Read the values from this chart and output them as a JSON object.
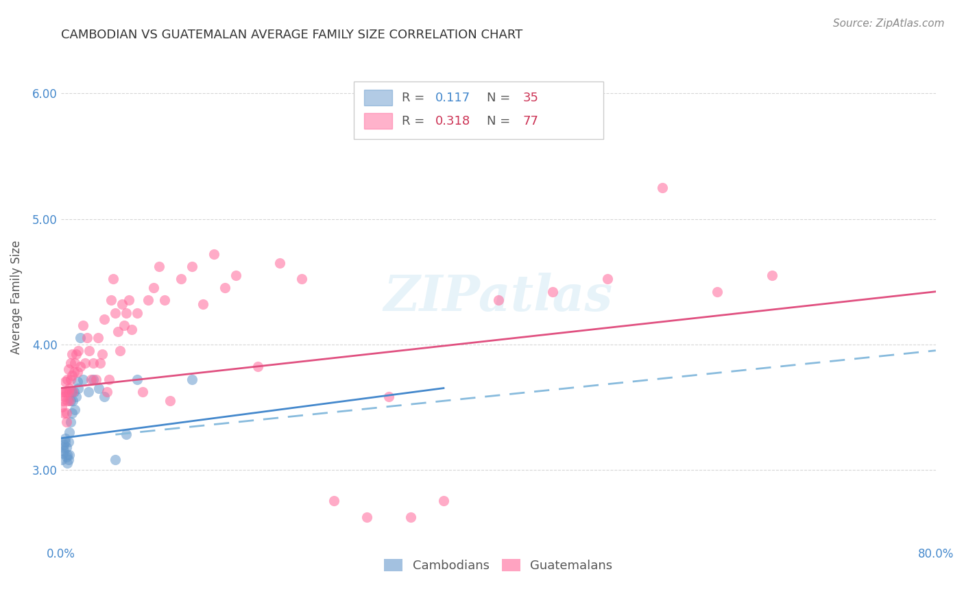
{
  "title": "CAMBODIAN VS GUATEMALAN AVERAGE FAMILY SIZE CORRELATION CHART",
  "source": "Source: ZipAtlas.com",
  "ylabel": "Average Family Size",
  "yticks": [
    3.0,
    4.0,
    5.0,
    6.0
  ],
  "ylim": [
    2.4,
    6.35
  ],
  "xlim": [
    0.0,
    0.8
  ],
  "cambodian_color": "#6699cc",
  "guatemalan_color": "#ff6699",
  "title_fontsize": 13,
  "axis_label_fontsize": 12,
  "tick_fontsize": 12,
  "source_fontsize": 11,
  "watermark": "ZIPatlas",
  "cambodian_scatter": [
    [
      0.001,
      3.08
    ],
    [
      0.002,
      3.13
    ],
    [
      0.002,
      3.18
    ],
    [
      0.003,
      3.2
    ],
    [
      0.003,
      3.15
    ],
    [
      0.004,
      3.22
    ],
    [
      0.004,
      3.25
    ],
    [
      0.005,
      3.18
    ],
    [
      0.005,
      3.1
    ],
    [
      0.006,
      3.12
    ],
    [
      0.006,
      3.05
    ],
    [
      0.007,
      3.08
    ],
    [
      0.007,
      3.22
    ],
    [
      0.008,
      3.3
    ],
    [
      0.008,
      3.12
    ],
    [
      0.009,
      3.55
    ],
    [
      0.009,
      3.38
    ],
    [
      0.01,
      3.62
    ],
    [
      0.01,
      3.45
    ],
    [
      0.011,
      3.55
    ],
    [
      0.012,
      3.62
    ],
    [
      0.013,
      3.48
    ],
    [
      0.014,
      3.58
    ],
    [
      0.015,
      3.7
    ],
    [
      0.016,
      3.65
    ],
    [
      0.018,
      4.05
    ],
    [
      0.02,
      3.72
    ],
    [
      0.025,
      3.62
    ],
    [
      0.03,
      3.72
    ],
    [
      0.035,
      3.65
    ],
    [
      0.04,
      3.58
    ],
    [
      0.05,
      3.08
    ],
    [
      0.06,
      3.28
    ],
    [
      0.07,
      3.72
    ],
    [
      0.12,
      3.72
    ]
  ],
  "guatemalan_scatter": [
    [
      0.001,
      3.5
    ],
    [
      0.002,
      3.55
    ],
    [
      0.002,
      3.62
    ],
    [
      0.003,
      3.45
    ],
    [
      0.003,
      3.58
    ],
    [
      0.004,
      3.62
    ],
    [
      0.004,
      3.7
    ],
    [
      0.005,
      3.45
    ],
    [
      0.005,
      3.38
    ],
    [
      0.005,
      3.62
    ],
    [
      0.006,
      3.55
    ],
    [
      0.006,
      3.72
    ],
    [
      0.007,
      3.62
    ],
    [
      0.007,
      3.8
    ],
    [
      0.008,
      3.55
    ],
    [
      0.008,
      3.65
    ],
    [
      0.009,
      3.72
    ],
    [
      0.009,
      3.85
    ],
    [
      0.01,
      3.92
    ],
    [
      0.01,
      3.75
    ],
    [
      0.011,
      3.62
    ],
    [
      0.012,
      3.78
    ],
    [
      0.013,
      3.85
    ],
    [
      0.014,
      3.92
    ],
    [
      0.015,
      3.78
    ],
    [
      0.016,
      3.95
    ],
    [
      0.018,
      3.82
    ],
    [
      0.02,
      4.15
    ],
    [
      0.022,
      3.85
    ],
    [
      0.024,
      4.05
    ],
    [
      0.026,
      3.95
    ],
    [
      0.028,
      3.72
    ],
    [
      0.03,
      3.85
    ],
    [
      0.032,
      3.72
    ],
    [
      0.034,
      4.05
    ],
    [
      0.036,
      3.85
    ],
    [
      0.038,
      3.92
    ],
    [
      0.04,
      4.2
    ],
    [
      0.042,
      3.62
    ],
    [
      0.044,
      3.72
    ],
    [
      0.046,
      4.35
    ],
    [
      0.048,
      4.52
    ],
    [
      0.05,
      4.25
    ],
    [
      0.052,
      4.1
    ],
    [
      0.054,
      3.95
    ],
    [
      0.056,
      4.32
    ],
    [
      0.058,
      4.15
    ],
    [
      0.06,
      4.25
    ],
    [
      0.062,
      4.35
    ],
    [
      0.065,
      4.12
    ],
    [
      0.07,
      4.25
    ],
    [
      0.075,
      3.62
    ],
    [
      0.08,
      4.35
    ],
    [
      0.085,
      4.45
    ],
    [
      0.09,
      4.62
    ],
    [
      0.095,
      4.35
    ],
    [
      0.1,
      3.55
    ],
    [
      0.11,
      4.52
    ],
    [
      0.12,
      4.62
    ],
    [
      0.13,
      4.32
    ],
    [
      0.14,
      4.72
    ],
    [
      0.15,
      4.45
    ],
    [
      0.16,
      4.55
    ],
    [
      0.18,
      3.82
    ],
    [
      0.2,
      4.65
    ],
    [
      0.22,
      4.52
    ],
    [
      0.25,
      2.75
    ],
    [
      0.28,
      2.62
    ],
    [
      0.3,
      3.58
    ],
    [
      0.32,
      2.62
    ],
    [
      0.35,
      2.75
    ],
    [
      0.4,
      4.35
    ],
    [
      0.45,
      4.42
    ],
    [
      0.5,
      4.52
    ],
    [
      0.55,
      5.25
    ],
    [
      0.6,
      4.42
    ],
    [
      0.65,
      4.55
    ]
  ],
  "cambodian_line": {
    "x0": 0.0,
    "y0": 3.25,
    "x1": 0.35,
    "y1": 3.65
  },
  "guatemalan_line": {
    "x0": 0.0,
    "y0": 3.65,
    "x1": 0.8,
    "y1": 4.42
  },
  "cambodian_dashed_line": {
    "x0": 0.05,
    "y0": 3.28,
    "x1": 0.8,
    "y1": 3.95
  },
  "background_color": "#ffffff",
  "grid_color": "#cccccc",
  "title_color": "#333333",
  "tick_color": "#4488cc",
  "source_color": "#888888",
  "legend_border_color": "#cccccc",
  "r_text_color": "#555555",
  "n_value_color": "#cc3355",
  "cam_r_color": "#4488cc",
  "guat_r_color": "#cc3355"
}
